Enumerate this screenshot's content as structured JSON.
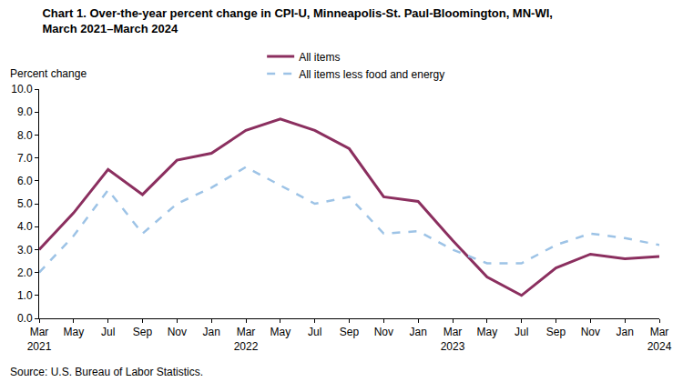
{
  "chart_data": {
    "type": "line",
    "title": "Chart 1. Over-the-year percent change in CPI-U, Minneapolis-St. Paul-Bloomington, MN-WI,\nMarch 2021–March 2024",
    "y_label": "Percent change",
    "source": "Source: U.S. Bureau of Labor Statistics.",
    "categories": [
      "Mar\n2021",
      "May",
      "Jul",
      "Sep",
      "Nov",
      "Jan",
      "Mar\n2022",
      "May",
      "Jul",
      "Sep",
      "Nov",
      "Jan",
      "Mar\n2023",
      "May",
      "Jul",
      "Sep",
      "Nov",
      "Jan",
      "Mar\n2024"
    ],
    "series": [
      {
        "name": "All items",
        "color": "#8b2f5f",
        "line_style": "solid",
        "values": [
          3.0,
          4.6,
          6.5,
          5.4,
          6.9,
          7.2,
          8.2,
          8.7,
          8.2,
          7.4,
          5.3,
          5.1,
          3.4,
          1.8,
          1.0,
          2.2,
          2.8,
          2.6,
          2.7
        ]
      },
      {
        "name": "All items less food and energy",
        "color": "#9dc3e6",
        "line_style": "dashed",
        "values": [
          2.0,
          3.6,
          5.6,
          3.7,
          5.0,
          5.7,
          6.6,
          5.8,
          5.0,
          5.3,
          3.7,
          3.8,
          3.0,
          2.4,
          2.4,
          3.2,
          3.7,
          3.5,
          3.2
        ]
      }
    ],
    "ylim": [
      0,
      10
    ],
    "yticks": [
      {
        "value": 0,
        "label": "0.0"
      },
      {
        "value": 1,
        "label": "1.0"
      },
      {
        "value": 2,
        "label": "2.0"
      },
      {
        "value": 3,
        "label": "3.0"
      },
      {
        "value": 4,
        "label": "4.0"
      },
      {
        "value": 5,
        "label": "5.0"
      },
      {
        "value": 6,
        "label": "6.0"
      },
      {
        "value": 7,
        "label": "7.0"
      },
      {
        "value": 8,
        "label": "8.0"
      },
      {
        "value": 9,
        "label": "9.0"
      },
      {
        "value": 10,
        "label": "10.0"
      }
    ],
    "grid": false,
    "legend": "top"
  }
}
